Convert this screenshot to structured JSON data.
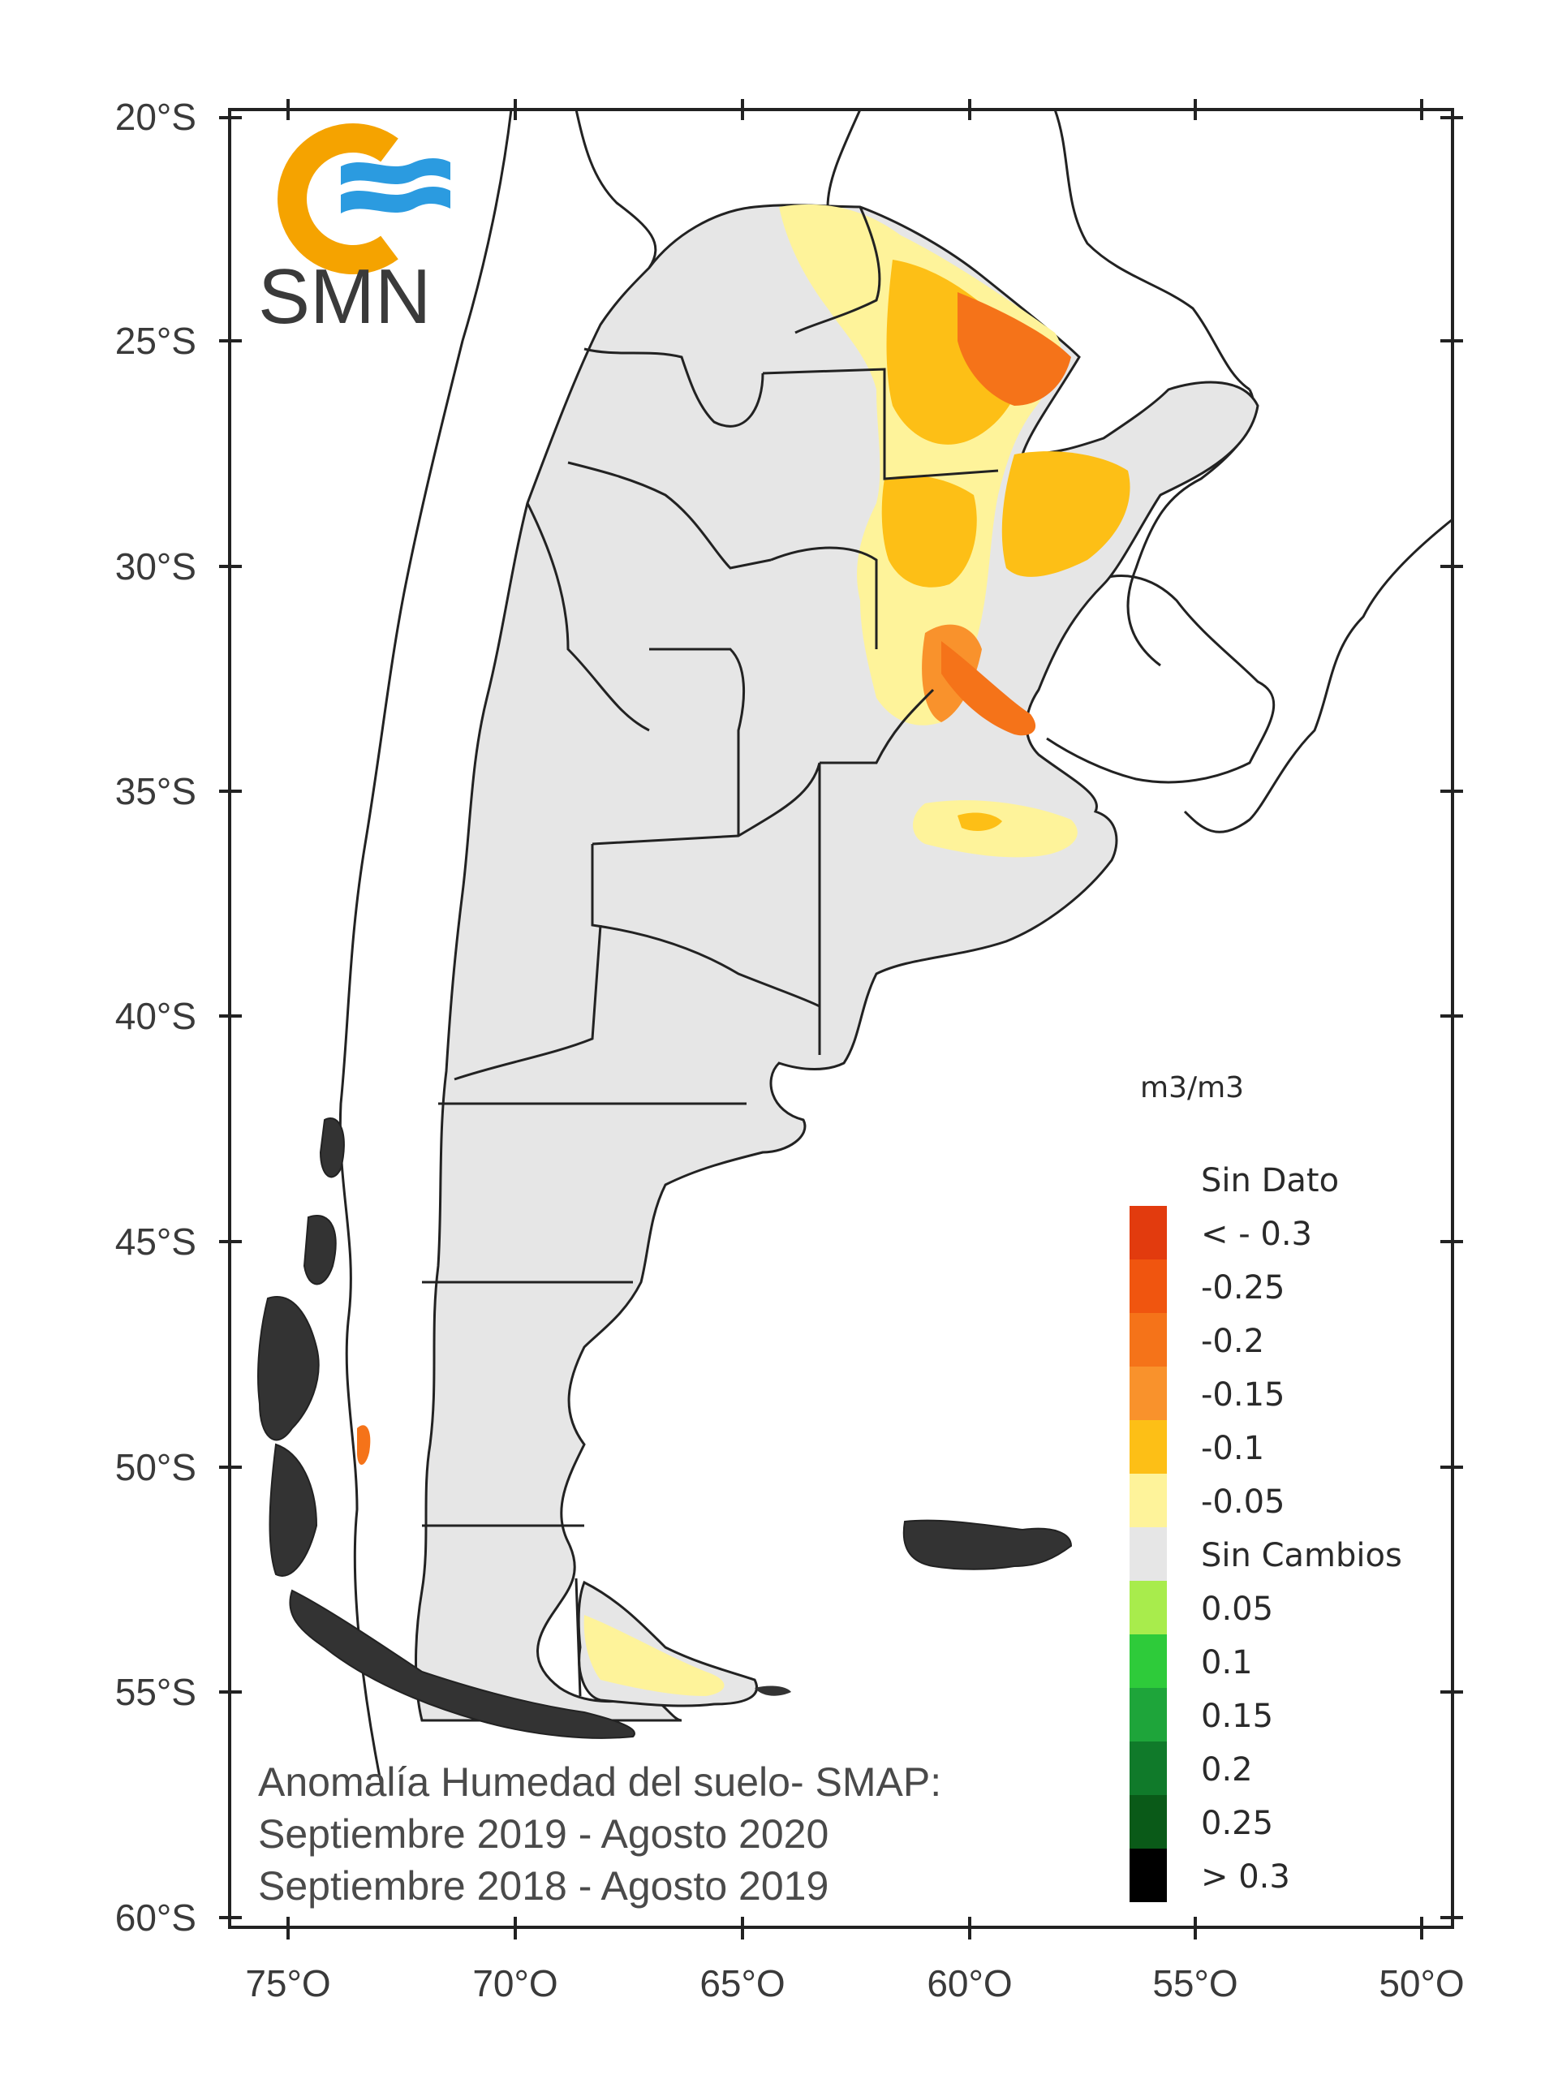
{
  "logo": {
    "text": "SMN",
    "colors": {
      "ring": "#f5a300",
      "waves": "#2b9be0"
    }
  },
  "map": {
    "frame_color": "#222222",
    "colors": {
      "land_no_change": "#e6e6e6",
      "foreign_land": "#ffffff",
      "ocean": "#ffffff",
      "border": "#222222",
      "chile_islands": "#333333"
    },
    "latitude_labels": [
      "20°S",
      "25°S",
      "30°S",
      "35°S",
      "40°S",
      "45°S",
      "50°S",
      "55°S",
      "60°S"
    ],
    "longitude_labels": [
      "75°O",
      "70°O",
      "65°O",
      "60°O",
      "55°O",
      "50°O"
    ]
  },
  "legend": {
    "unit": "m3/m3",
    "items": [
      {
        "label": "Sin Dato",
        "color": null
      },
      {
        "label": "< - 0.3",
        "color": "#e23b0e"
      },
      {
        "label": "-0.25",
        "color": "#f0550f"
      },
      {
        "label": "-0.2",
        "color": "#f57319"
      },
      {
        "label": "-0.15",
        "color": "#f9922c"
      },
      {
        "label": "-0.1",
        "color": "#fdbf16"
      },
      {
        "label": "-0.05",
        "color": "#fef39a"
      },
      {
        "label": "Sin Cambios",
        "color": "#e6e6e6"
      },
      {
        "label": "0.05",
        "color": "#a8ec4c"
      },
      {
        "label": "0.1",
        "color": "#2ecb3a"
      },
      {
        "label": "0.15",
        "color": "#1ea53a"
      },
      {
        "label": "0.2",
        "color": "#107a2a"
      },
      {
        "label": "0.25",
        "color": "#0a5a18"
      },
      {
        "label": "> 0.3",
        "color": "#000000"
      }
    ]
  },
  "caption": {
    "line1": "Anomalía Humedad del suelo- SMAP:",
    "line2": "Septiembre 2019 - Agosto 2020",
    "line3": "Septiembre 2018  - Agosto 2019"
  }
}
